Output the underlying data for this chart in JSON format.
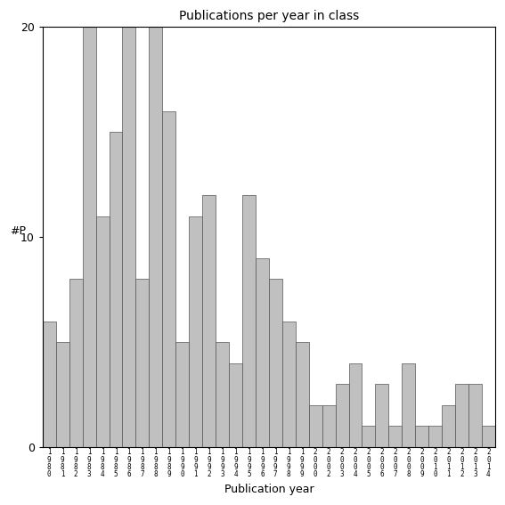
{
  "title": "Publications per year in class",
  "xlabel": "Publication year",
  "ylabel": "#P",
  "bar_color": "#c0c0c0",
  "bar_edge_color": "#555555",
  "background_color": "#ffffff",
  "ylim": [
    0,
    20
  ],
  "yticks": [
    0,
    10,
    20
  ],
  "years": [
    "1980",
    "1981",
    "1982",
    "1983",
    "1984",
    "1985",
    "1986",
    "1987",
    "1988",
    "1989",
    "1990",
    "1991",
    "1992",
    "1993",
    "1994",
    "1995",
    "1996",
    "1997",
    "1998",
    "1999",
    "2000",
    "2002",
    "2003",
    "2004",
    "2005",
    "2006",
    "2007",
    "2008",
    "2009",
    "2010",
    "2011",
    "2012",
    "2013",
    "2014"
  ],
  "values": [
    6,
    5,
    8,
    20,
    11,
    15,
    20,
    8,
    20,
    16,
    5,
    11,
    12,
    5,
    4,
    12,
    9,
    8,
    6,
    5,
    2,
    2,
    3,
    4,
    1,
    3,
    1,
    4,
    1,
    1,
    2,
    3,
    3,
    1
  ]
}
